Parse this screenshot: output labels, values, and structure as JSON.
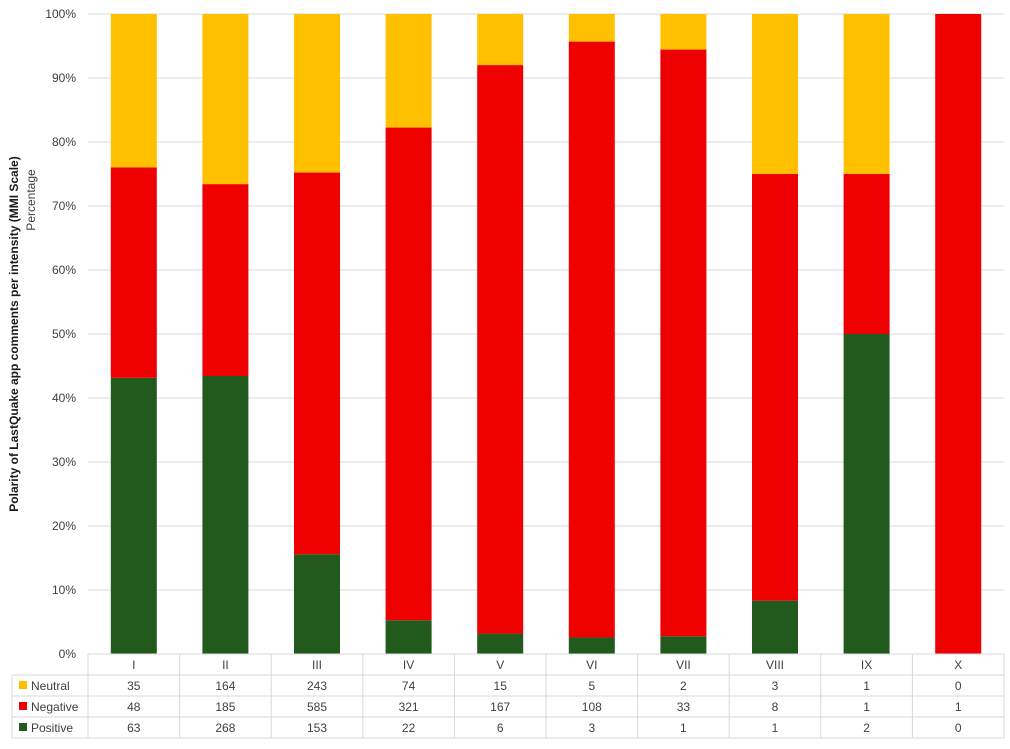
{
  "chart_data": {
    "type": "bar",
    "stacked": "percent",
    "ylabel": "Polarity of LastQuake app comments per intensity (MMI Scale)",
    "ylabel_sub": "Percentage",
    "yticks": [
      "0%",
      "10%",
      "20%",
      "30%",
      "40%",
      "50%",
      "60%",
      "70%",
      "80%",
      "90%",
      "100%"
    ],
    "ylim": [
      0,
      100
    ],
    "grid": true,
    "legend": "table-below",
    "categories": [
      "I",
      "II",
      "III",
      "IV",
      "V",
      "VI",
      "VII",
      "VIII",
      "IX",
      "X"
    ],
    "series": [
      {
        "name": "Neutral",
        "color": "#ffc000",
        "values": [
          35,
          164,
          243,
          74,
          15,
          5,
          2,
          3,
          1,
          0
        ]
      },
      {
        "name": "Negative",
        "color": "#ee0000",
        "values": [
          48,
          185,
          585,
          321,
          167,
          108,
          33,
          8,
          1,
          1
        ]
      },
      {
        "name": "Positive",
        "color": "#215a1c",
        "values": [
          63,
          268,
          153,
          22,
          6,
          3,
          1,
          1,
          2,
          0
        ]
      }
    ]
  }
}
